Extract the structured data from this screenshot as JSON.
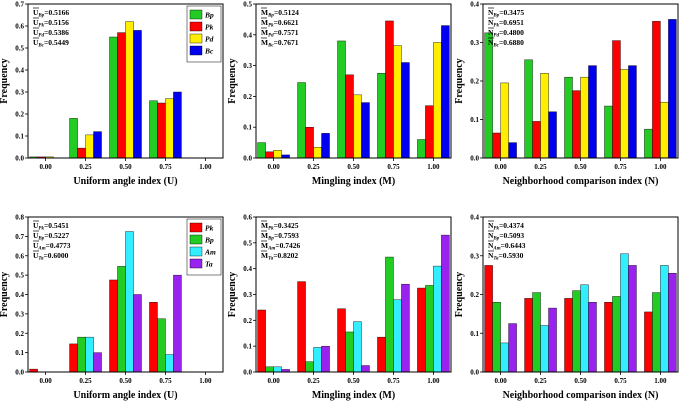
{
  "chart_data": [
    {
      "type": "bar",
      "xlabel": "Uniform angle index (U)",
      "ylabel": "Frequency",
      "categories": [
        "0.00",
        "0.25",
        "0.50",
        "0.75",
        "1.00"
      ],
      "ylim": [
        0,
        0.7
      ],
      "yticks": [
        "0.0",
        "0.1",
        "0.2",
        "0.3",
        "0.4",
        "0.5",
        "0.6",
        "0.7"
      ],
      "annotations": [
        {
          "base": "U",
          "sub": "Bp",
          "value": "=0.5166"
        },
        {
          "base": "U",
          "sub": "Pk",
          "value": "=0.5156"
        },
        {
          "base": "U",
          "sub": "Pd",
          "value": "=0.5386"
        },
        {
          "base": "U",
          "sub": "Bc",
          "value": "=0.5449"
        }
      ],
      "legend_position": "top-right",
      "series": [
        {
          "name": "Bp",
          "color": "#22cc22",
          "values": [
            0.005,
            0.18,
            0.55,
            0.26,
            0
          ]
        },
        {
          "name": "Pk",
          "color": "#ff0000",
          "values": [
            0.005,
            0.045,
            0.57,
            0.25,
            0
          ]
        },
        {
          "name": "Pd",
          "color": "#ffee00",
          "values": [
            0.005,
            0.105,
            0.62,
            0.27,
            0
          ]
        },
        {
          "name": "Bc",
          "color": "#0000ee",
          "values": [
            0,
            0.12,
            0.58,
            0.3,
            0
          ]
        }
      ]
    },
    {
      "type": "bar",
      "xlabel": "Mingling index (M)",
      "ylabel": "Frequency",
      "categories": [
        "0.00",
        "0.25",
        "0.50",
        "0.75",
        "1.00"
      ],
      "ylim": [
        0,
        0.5
      ],
      "yticks": [
        "0.0",
        "0.1",
        "0.2",
        "0.3",
        "0.4",
        "0.5"
      ],
      "annotations": [
        {
          "base": "M",
          "sub": "Bp",
          "value": "=0.5124"
        },
        {
          "base": "M",
          "sub": "Pk",
          "value": "=0.6621"
        },
        {
          "base": "M",
          "sub": "Pd",
          "value": "=0.7571"
        },
        {
          "base": "M",
          "sub": "Bc",
          "value": "=0.7671"
        }
      ],
      "series": [
        {
          "name": "Bp",
          "color": "#22cc22",
          "values": [
            0.05,
            0.245,
            0.38,
            0.275,
            0.06
          ]
        },
        {
          "name": "Pk",
          "color": "#ff0000",
          "values": [
            0.02,
            0.1,
            0.27,
            0.445,
            0.17
          ]
        },
        {
          "name": "Pd",
          "color": "#ffee00",
          "values": [
            0.025,
            0.035,
            0.205,
            0.365,
            0.375
          ]
        },
        {
          "name": "Bc",
          "color": "#0000ee",
          "values": [
            0.01,
            0.08,
            0.18,
            0.31,
            0.43
          ]
        }
      ]
    },
    {
      "type": "bar",
      "xlabel": "Neighborhood comparison index (N)",
      "ylabel": "Frequency",
      "categories": [
        "0.00",
        "0.25",
        "0.50",
        "0.75",
        "1.00"
      ],
      "ylim": [
        0,
        0.4
      ],
      "yticks": [
        "0.0",
        "0.1",
        "0.2",
        "0.3",
        "0.4"
      ],
      "annotations": [
        {
          "base": "N",
          "sub": "Bp",
          "value": "=0.3475"
        },
        {
          "base": "N",
          "sub": "Pk",
          "value": "=0.6951"
        },
        {
          "base": "N",
          "sub": "Pd",
          "value": "=0.4800"
        },
        {
          "base": "N",
          "sub": "Bc",
          "value": "=0.6880"
        }
      ],
      "series": [
        {
          "name": "Bp",
          "color": "#22cc22",
          "values": [
            0.325,
            0.255,
            0.21,
            0.135,
            0.075
          ]
        },
        {
          "name": "Pk",
          "color": "#ff0000",
          "values": [
            0.065,
            0.095,
            0.175,
            0.305,
            0.355
          ]
        },
        {
          "name": "Pd",
          "color": "#ffee00",
          "values": [
            0.195,
            0.22,
            0.21,
            0.23,
            0.145
          ]
        },
        {
          "name": "Bc",
          "color": "#0000ee",
          "values": [
            0.04,
            0.12,
            0.24,
            0.24,
            0.36
          ]
        }
      ]
    },
    {
      "type": "bar",
      "xlabel": "Uniform angle index (U)",
      "ylabel": "Frequency",
      "categories": [
        "0.00",
        "0.25",
        "0.50",
        "0.75",
        "1.00"
      ],
      "ylim": [
        0,
        0.8
      ],
      "yticks": [
        "0.0",
        "0.1",
        "0.2",
        "0.3",
        "0.4",
        "0.5",
        "0.6",
        "0.7",
        "0.8"
      ],
      "annotations": [
        {
          "base": "U",
          "sub": "Pk",
          "value": "=0.5451"
        },
        {
          "base": "U",
          "sub": "Bp",
          "value": "=0.5227"
        },
        {
          "base": "U",
          "sub": "Am",
          "value": "=0.4773"
        },
        {
          "base": "U",
          "sub": "Ta",
          "value": "=0.6000"
        }
      ],
      "legend_position": "top-right",
      "series": [
        {
          "name": "Pk",
          "color": "#ff0000",
          "values": [
            0.015,
            0.145,
            0.475,
            0.36,
            0
          ]
        },
        {
          "name": "Bp",
          "color": "#22cc22",
          "values": [
            0,
            0.18,
            0.545,
            0.275,
            0
          ]
        },
        {
          "name": "Am",
          "color": "#33eeff",
          "values": [
            0,
            0.18,
            0.725,
            0.09,
            0
          ]
        },
        {
          "name": "Ta",
          "color": "#9922ee",
          "values": [
            0,
            0.1,
            0.4,
            0.5,
            0
          ]
        }
      ]
    },
    {
      "type": "bar",
      "xlabel": "Mingling index (M)",
      "ylabel": "Frequency",
      "categories": [
        "0.00",
        "0.25",
        "0.50",
        "0.75",
        "1.00"
      ],
      "ylim": [
        0,
        0.6
      ],
      "yticks": [
        "0.0",
        "0.1",
        "0.2",
        "0.3",
        "0.4",
        "0.5",
        "0.6"
      ],
      "annotations": [
        {
          "base": "M",
          "sub": "Pk",
          "value": "=0.3425"
        },
        {
          "base": "M",
          "sub": "Bp",
          "value": "=0.7593"
        },
        {
          "base": "M",
          "sub": "Am",
          "value": "=0.7426"
        },
        {
          "base": "M",
          "sub": "Ta",
          "value": "=0.8202"
        }
      ],
      "series": [
        {
          "name": "Pk",
          "color": "#ff0000",
          "values": [
            0.24,
            0.35,
            0.245,
            0.135,
            0.325
          ]
        },
        {
          "name": "Bp",
          "color": "#22cc22",
          "values": [
            0.02,
            0.04,
            0.155,
            0.445,
            0.335
          ]
        },
        {
          "name": "Am",
          "color": "#33eeff",
          "values": [
            0.02,
            0.095,
            0.195,
            0.28,
            0.41
          ]
        },
        {
          "name": "Ta",
          "color": "#9922ee",
          "values": [
            0.01,
            0.1,
            0.025,
            0.34,
            0.53
          ]
        }
      ]
    },
    {
      "type": "bar",
      "xlabel": "Neighborhood comparison index (N)",
      "ylabel": "Frequency",
      "categories": [
        "0.00",
        "0.25",
        "0.50",
        "0.75",
        "1.00"
      ],
      "ylim": [
        0,
        0.4
      ],
      "yticks": [
        "0.0",
        "0.1",
        "0.2",
        "0.3",
        "0.4"
      ],
      "annotations": [
        {
          "base": "N",
          "sub": "Pk",
          "value": "=0.4374"
        },
        {
          "base": "N",
          "sub": "Bp",
          "value": "=0.5093"
        },
        {
          "base": "N",
          "sub": "Am",
          "value": "=0.6443"
        },
        {
          "base": "N",
          "sub": "Ta",
          "value": "=0.5930"
        }
      ],
      "series": [
        {
          "name": "Pk",
          "color": "#ff0000",
          "values": [
            0.275,
            0.19,
            0.19,
            0.18,
            0.155
          ]
        },
        {
          "name": "Bp",
          "color": "#22cc22",
          "values": [
            0.18,
            0.205,
            0.21,
            0.195,
            0.205
          ]
        },
        {
          "name": "Am",
          "color": "#33eeff",
          "values": [
            0.075,
            0.12,
            0.225,
            0.305,
            0.275
          ]
        },
        {
          "name": "Ta",
          "color": "#9922ee",
          "values": [
            0.125,
            0.165,
            0.18,
            0.275,
            0.255
          ]
        }
      ]
    }
  ]
}
